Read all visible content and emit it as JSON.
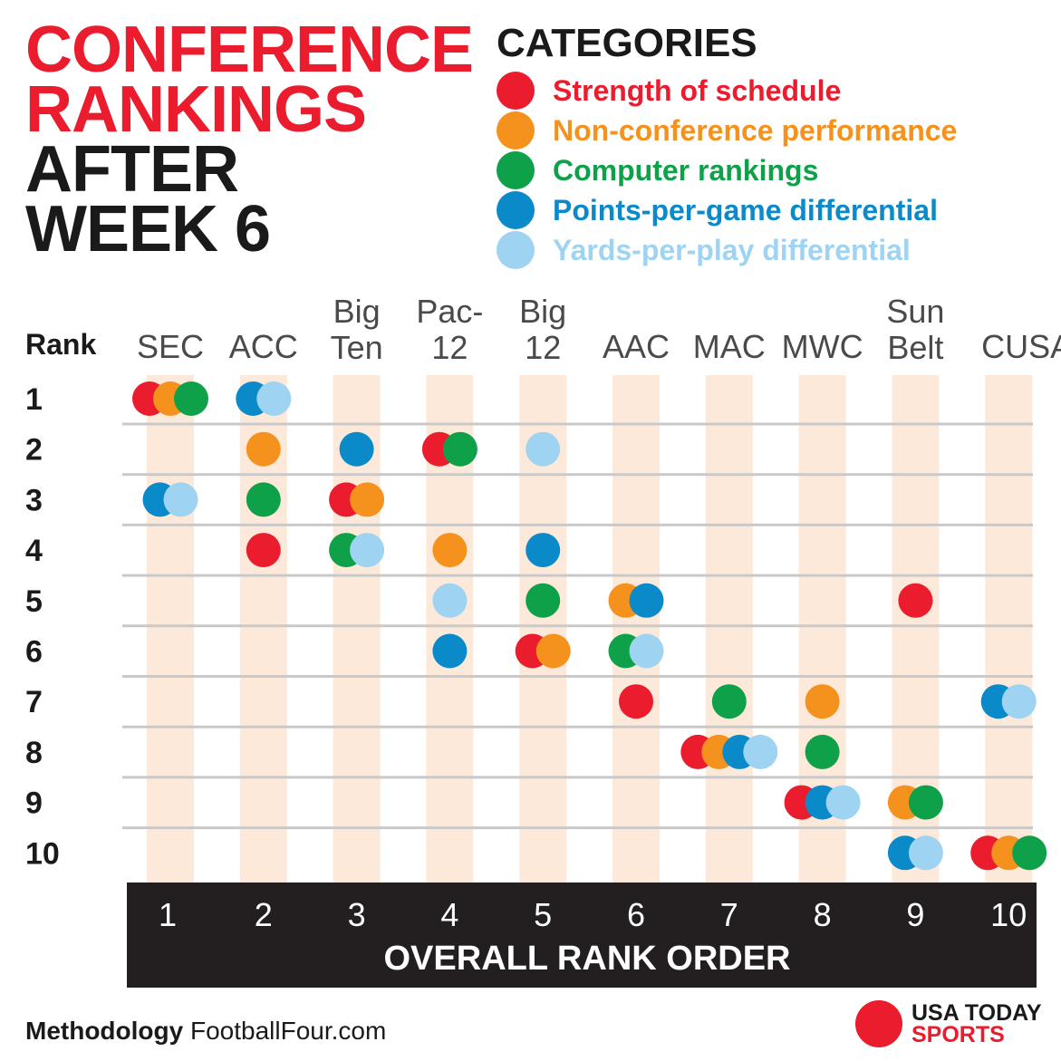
{
  "header": {
    "title_line1": "CONFERENCE",
    "title_line2": "RANKINGS",
    "title_line3": "AFTER",
    "title_line4": "WEEK 6"
  },
  "legend": {
    "title": "CATEGORIES",
    "items": [
      {
        "label": "Strength of schedule",
        "color": "#ea1c2d"
      },
      {
        "label": "Non-conference performance",
        "color": "#f5921e"
      },
      {
        "label": "Computer rankings",
        "color": "#0fa14a"
      },
      {
        "label": "Points-per-game differential",
        "color": "#0b8ac9"
      },
      {
        "label": "Yards-per-play differential",
        "color": "#9ed3f2"
      }
    ]
  },
  "chart_data": {
    "type": "scatter",
    "title": "CONFERENCE RANKINGS AFTER WEEK 6",
    "ylabel": "Rank",
    "xlabel": "OVERALL RANK ORDER",
    "x_tick_labels": [
      "1",
      "2",
      "3",
      "4",
      "5",
      "6",
      "7",
      "8",
      "9",
      "10"
    ],
    "y_tick_labels": [
      "1",
      "2",
      "3",
      "4",
      "5",
      "6",
      "7",
      "8",
      "9",
      "10"
    ],
    "conferences": [
      {
        "name": [
          "SEC"
        ],
        "overall": 1
      },
      {
        "name": [
          "ACC"
        ],
        "overall": 2
      },
      {
        "name": [
          "Big",
          "Ten"
        ],
        "overall": 3
      },
      {
        "name": [
          "Pac-",
          "12"
        ],
        "overall": 4
      },
      {
        "name": [
          "Big",
          "12"
        ],
        "overall": 5
      },
      {
        "name": [
          "AAC"
        ],
        "overall": 6
      },
      {
        "name": [
          "MAC"
        ],
        "overall": 7
      },
      {
        "name": [
          "MWC"
        ],
        "overall": 8
      },
      {
        "name": [
          "Sun",
          "Belt"
        ],
        "overall": 9
      },
      {
        "name": [
          "CUSA"
        ],
        "overall": 10
      }
    ],
    "series": [
      {
        "name": "Strength of schedule",
        "color": "#ea1c2d",
        "ranks": [
          1,
          4,
          3,
          2,
          6,
          7,
          8,
          9,
          5,
          10
        ]
      },
      {
        "name": "Non-conference performance",
        "color": "#f5921e",
        "ranks": [
          1,
          2,
          3,
          4,
          6,
          5,
          8,
          7,
          9,
          10
        ]
      },
      {
        "name": "Computer rankings",
        "color": "#0fa14a",
        "ranks": [
          1,
          3,
          4,
          2,
          5,
          6,
          7,
          8,
          9,
          10
        ]
      },
      {
        "name": "Points-per-game differential",
        "color": "#0b8ac9",
        "ranks": [
          3,
          1,
          2,
          6,
          4,
          5,
          8,
          9,
          10,
          7
        ]
      },
      {
        "name": "Yards-per-play differential",
        "color": "#9ed3f2",
        "ranks": [
          3,
          1,
          4,
          5,
          2,
          6,
          8,
          9,
          10,
          7
        ]
      }
    ]
  },
  "footer": {
    "methodology_label": "Methodology",
    "source": "FootballFour.com",
    "brand_line1": "USA TODAY",
    "brand_line2": "SPORTS"
  }
}
